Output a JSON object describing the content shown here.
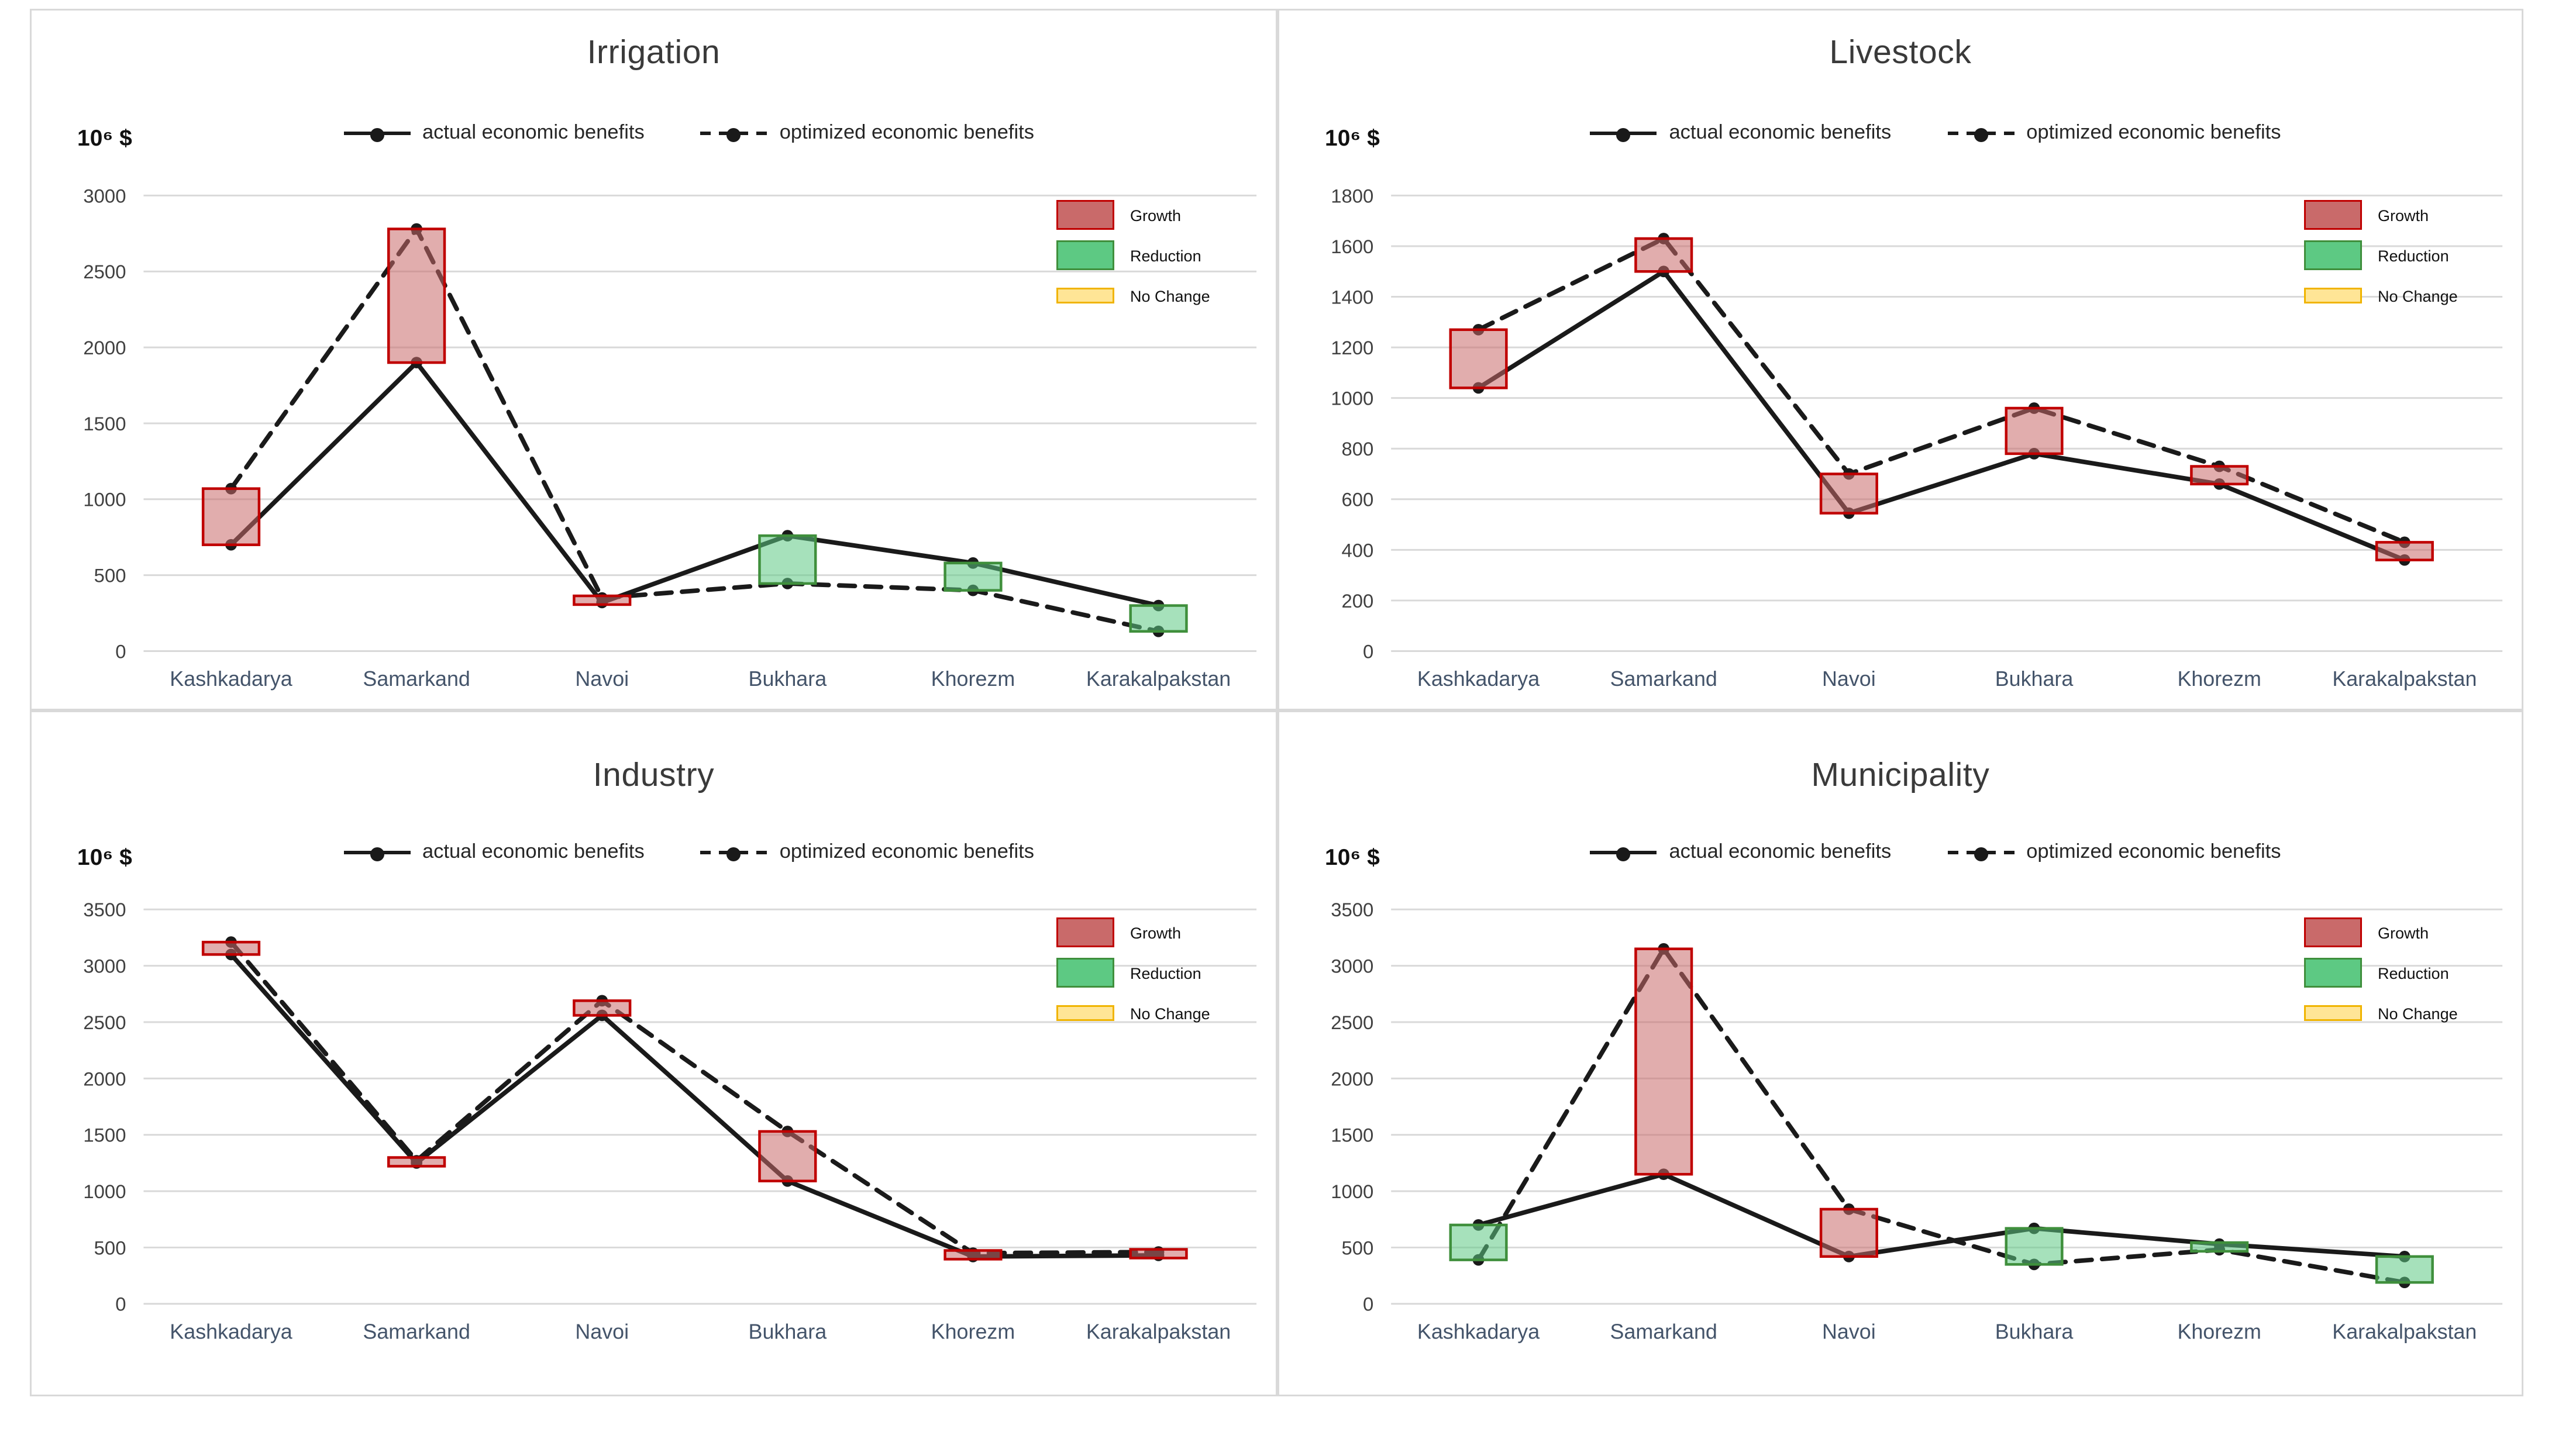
{
  "y_axis_unit": "10⁶ $",
  "legend": {
    "actual_label": "actual economic benefits",
    "optimized_label": "optimized economic benefits"
  },
  "change_legend": [
    {
      "key": "growth",
      "label": "Growth"
    },
    {
      "key": "reduction",
      "label": "Reduction"
    },
    {
      "key": "nochange",
      "label": "No Change"
    }
  ],
  "colors": {
    "growth_fill": "#c96a6a",
    "growth_border": "#c00000",
    "reduction_fill": "#5dc983",
    "reduction_border": "#3f8f3c",
    "nochange_fill": "#ffe596",
    "nochange_border": "#f0b400",
    "line": "#1a1a1a",
    "grid": "#d9d9d9",
    "y_label": "#404040",
    "x_label": "#44546a"
  },
  "categories": [
    "Kashkadarya",
    "Samarkand",
    "Navoi",
    "Bukhara",
    "Khorezm",
    "Karakalpakstan"
  ],
  "chart_data": [
    {
      "type": "line",
      "title": "Irrigation",
      "xlabel": "",
      "ylabel": "10⁶ $",
      "ylim": [
        0,
        3000
      ],
      "ytick_step": 500,
      "grid": true,
      "legend_position": "top",
      "categories": [
        "Kashkadarya",
        "Samarkand",
        "Navoi",
        "Bukhara",
        "Khorezm",
        "Karakalpakstan"
      ],
      "series": [
        {
          "name": "actual economic benefits",
          "style": "solid",
          "values": [
            700,
            1900,
            320,
            760,
            580,
            300
          ]
        },
        {
          "name": "optimized economic benefits",
          "style": "dashed",
          "values": [
            1070,
            2780,
            350,
            445,
            400,
            130
          ]
        }
      ],
      "changes": [
        "growth",
        "growth",
        "growth",
        "reduction",
        "reduction",
        "reduction"
      ]
    },
    {
      "type": "line",
      "title": "Livestock",
      "xlabel": "",
      "ylabel": "10⁶ $",
      "ylim": [
        0,
        1800
      ],
      "ytick_step": 200,
      "grid": true,
      "legend_position": "top",
      "categories": [
        "Kashkadarya",
        "Samarkand",
        "Navoi",
        "Bukhara",
        "Khorezm",
        "Karakalpakstan"
      ],
      "series": [
        {
          "name": "actual economic benefits",
          "style": "solid",
          "values": [
            1040,
            1500,
            545,
            780,
            660,
            360
          ]
        },
        {
          "name": "optimized economic benefits",
          "style": "dashed",
          "values": [
            1270,
            1630,
            700,
            960,
            730,
            430
          ]
        }
      ],
      "changes": [
        "growth",
        "growth",
        "growth",
        "growth",
        "growth",
        "growth"
      ]
    },
    {
      "type": "line",
      "title": "Industry",
      "xlabel": "",
      "ylabel": "10⁶ $",
      "ylim": [
        0,
        3500
      ],
      "ytick_step": 500,
      "grid": true,
      "legend_position": "top",
      "categories": [
        "Kashkadarya",
        "Samarkand",
        "Navoi",
        "Bukhara",
        "Khorezm",
        "Karakalpakstan"
      ],
      "series": [
        {
          "name": "actual economic benefits",
          "style": "solid",
          "values": [
            3100,
            1250,
            2560,
            1090,
            420,
            430
          ]
        },
        {
          "name": "optimized economic benefits",
          "style": "dashed",
          "values": [
            3210,
            1270,
            2690,
            1530,
            450,
            460
          ]
        }
      ],
      "changes": [
        "growth",
        "growth",
        "growth",
        "growth",
        "growth",
        "growth"
      ]
    },
    {
      "type": "line",
      "title": "Municipality",
      "xlabel": "",
      "ylabel": "10⁶ $",
      "ylim": [
        0,
        3500
      ],
      "ytick_step": 500,
      "grid": true,
      "legend_position": "top",
      "categories": [
        "Kashkadarya",
        "Samarkand",
        "Navoi",
        "Bukhara",
        "Khorezm",
        "Karakalpakstan"
      ],
      "series": [
        {
          "name": "actual economic benefits",
          "style": "solid",
          "values": [
            700,
            1150,
            420,
            670,
            530,
            420
          ]
        },
        {
          "name": "optimized economic benefits",
          "style": "dashed",
          "values": [
            390,
            3150,
            840,
            350,
            480,
            190
          ]
        }
      ],
      "changes": [
        "reduction",
        "growth",
        "growth",
        "reduction",
        "reduction",
        "reduction"
      ]
    }
  ]
}
